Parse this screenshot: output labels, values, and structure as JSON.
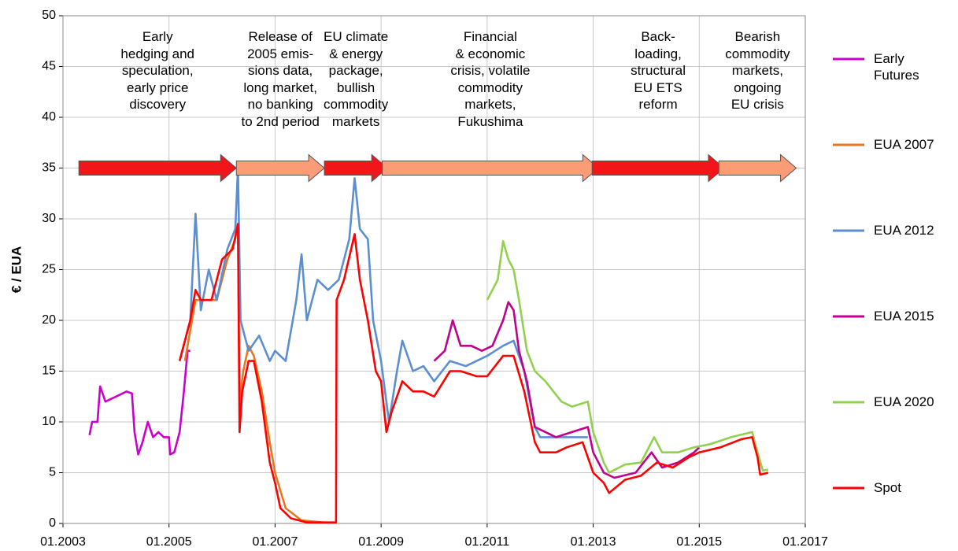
{
  "chart_data": {
    "type": "line",
    "y_label": "€ / EUA",
    "xlim": [
      2003,
      2017
    ],
    "xticks": [
      {
        "value": 2003,
        "label": "01.2003"
      },
      {
        "value": 2005,
        "label": "01.2005"
      },
      {
        "value": 2007,
        "label": "01.2007"
      },
      {
        "value": 2009,
        "label": "01.2009"
      },
      {
        "value": 2011,
        "label": "01.2011"
      },
      {
        "value": 2013,
        "label": "01.2013"
      },
      {
        "value": 2015,
        "label": "01.2015"
      },
      {
        "value": 2017,
        "label": "01.2017"
      }
    ],
    "ylim": [
      0,
      50
    ],
    "yticks": [
      0,
      5,
      10,
      15,
      20,
      25,
      30,
      35,
      40,
      45,
      50
    ],
    "grid": true,
    "legend": "right",
    "phase_level": 35,
    "phases": [
      {
        "label": "Early\nhedging and\nspeculation,\nearly price\ndiscovery",
        "start": 2003.3,
        "end": 2006.27,
        "color": "#f2161b"
      },
      {
        "label": "Release of\n2005 emis-\nsions data,\nlong market,\nno banking\nto 2nd period",
        "start": 2006.27,
        "end": 2007.93,
        "color": "#fb9c76"
      },
      {
        "label": "EU climate\n& energy\npackage,\nbullish\ncommodity\nmarkets",
        "start": 2007.93,
        "end": 2009.12,
        "color": "#f2161b"
      },
      {
        "label": "Financial\n& economic\ncrisis, volatile\ncommodity\nmarkets,\nFukushima",
        "start": 2009.02,
        "end": 2013.1,
        "color": "#fb9c76"
      },
      {
        "label": "Back-\nloading,\nstructural\nEU ETS\nreform",
        "start": 2012.98,
        "end": 2015.47,
        "color": "#f2161b"
      },
      {
        "label": "Bearish\ncommodity\nmarkets,\nongoing\nEU crisis",
        "start": 2015.37,
        "end": 2016.83,
        "color": "#fb9c76"
      }
    ],
    "series": [
      {
        "name": "Early Futures",
        "color": "#cc00cc",
        "x": [
          2003.5,
          2003.55,
          2003.65,
          2003.7,
          2003.8,
          2004.0,
          2004.2,
          2004.3,
          2004.35,
          2004.42,
          2004.5,
          2004.6,
          2004.7,
          2004.8,
          2004.9,
          2005.0,
          2005.02,
          2005.1,
          2005.2,
          2005.28,
          2005.35,
          2005.4
        ],
        "values": [
          8.7,
          10,
          10,
          13.5,
          12,
          12.5,
          13,
          12.8,
          9,
          6.8,
          8,
          10,
          8.5,
          9,
          8.5,
          8.5,
          6.8,
          7,
          9,
          13,
          17,
          17
        ]
      },
      {
        "name": "EUA 2007",
        "color": "#e87722",
        "x": [
          2005.3,
          2005.5,
          2005.7,
          2005.9,
          2006.1,
          2006.25,
          2006.3,
          2006.33,
          2006.4,
          2006.5,
          2006.6,
          2006.75,
          2006.9,
          2007.0,
          2007.2,
          2007.5,
          2007.9
        ],
        "values": [
          16,
          22,
          22,
          22,
          26,
          28,
          29.5,
          12,
          15,
          17.5,
          16.5,
          13,
          8,
          5,
          1.5,
          0.3,
          0.1
        ]
      },
      {
        "name": "EUA 2012",
        "color": "#5b8fd0",
        "x": [
          2005.2,
          2005.4,
          2005.5,
          2005.6,
          2005.75,
          2005.9,
          2006.1,
          2006.25,
          2006.3,
          2006.35,
          2006.5,
          2006.7,
          2006.9,
          2007.0,
          2007.2,
          2007.4,
          2007.5,
          2007.6,
          2007.8,
          2008.0,
          2008.2,
          2008.4,
          2008.5,
          2008.6,
          2008.75,
          2008.85,
          2009.0,
          2009.15,
          2009.3,
          2009.4,
          2009.6,
          2009.8,
          2010.0,
          2010.3,
          2010.6,
          2011.0,
          2011.3,
          2011.5,
          2011.7,
          2011.9,
          2012.0,
          2012.3,
          2012.6,
          2012.9
        ],
        "values": [
          16,
          20,
          30.5,
          21,
          25,
          22,
          27,
          29,
          35,
          20,
          17,
          18.5,
          16,
          17,
          16,
          22,
          26.5,
          20,
          24,
          23,
          24,
          28,
          34,
          29,
          28,
          20,
          16,
          10,
          15,
          18,
          15,
          15.5,
          14,
          16,
          15.5,
          16.5,
          17.5,
          18,
          15,
          9.5,
          8.5,
          8.5,
          8.5,
          8.5
        ]
      },
      {
        "name": "EUA 2015",
        "color": "#c0008f",
        "x": [
          2010.0,
          2010.2,
          2010.35,
          2010.5,
          2010.7,
          2010.9,
          2011.1,
          2011.3,
          2011.4,
          2011.5,
          2011.6,
          2011.75,
          2011.9,
          2012.1,
          2012.3,
          2012.6,
          2012.9,
          2013.0,
          2013.2,
          2013.4,
          2013.8,
          2014.1,
          2014.3,
          2014.6,
          2014.9,
          2015.0
        ],
        "values": [
          16,
          17,
          20,
          17.5,
          17.5,
          17,
          17.5,
          20,
          21.8,
          21,
          17,
          14,
          9.5,
          9,
          8.5,
          9,
          9.5,
          7,
          5,
          4.5,
          5,
          7,
          5.5,
          6,
          7,
          7.5
        ]
      },
      {
        "name": "EUA 2020",
        "color": "#92d050",
        "x": [
          2011.0,
          2011.2,
          2011.3,
          2011.4,
          2011.5,
          2011.6,
          2011.75,
          2011.9,
          2012.1,
          2012.4,
          2012.6,
          2012.9,
          2013.0,
          2013.2,
          2013.3,
          2013.6,
          2013.9,
          2014.15,
          2014.3,
          2014.6,
          2014.9,
          2015.2,
          2015.6,
          2016.0,
          2016.1,
          2016.2,
          2016.3
        ],
        "values": [
          22,
          24,
          27.8,
          26,
          25,
          22,
          17,
          15,
          14,
          12,
          11.5,
          12,
          9,
          6,
          5,
          5.8,
          6,
          8.5,
          7,
          7,
          7.5,
          7.8,
          8.5,
          9,
          7,
          5.2,
          5.3
        ]
      },
      {
        "name": "Spot",
        "color": "#ff0000",
        "x": [
          2005.2,
          2005.4,
          2005.5,
          2005.6,
          2005.8,
          2006.0,
          2006.2,
          2006.3,
          2006.33,
          2006.38,
          2006.5,
          2006.6,
          2006.75,
          2006.9,
          2007.0,
          2007.1,
          2007.3,
          2007.6,
          2008.15,
          2008.16,
          2008.3,
          2008.5,
          2008.6,
          2008.75,
          2008.9,
          2009.0,
          2009.1,
          2009.2,
          2009.4,
          2009.6,
          2009.8,
          2010.0,
          2010.3,
          2010.5,
          2010.8,
          2011.0,
          2011.3,
          2011.5,
          2011.7,
          2011.9,
          2012.0,
          2012.3,
          2012.5,
          2012.8,
          2013.0,
          2013.2,
          2013.3,
          2013.6,
          2013.9,
          2014.2,
          2014.5,
          2014.8,
          2015.0,
          2015.4,
          2015.8,
          2016.0,
          2016.1,
          2016.15,
          2016.3
        ],
        "values": [
          16,
          20,
          23,
          22,
          22,
          26,
          27,
          29.5,
          9,
          13,
          16,
          16,
          12,
          6,
          4,
          1.5,
          0.5,
          0.1,
          0.1,
          22,
          24,
          28.5,
          24,
          20,
          15,
          14,
          9,
          11,
          14,
          13,
          13,
          12.5,
          15,
          15,
          14.5,
          14.5,
          16.5,
          16.5,
          13,
          8,
          7,
          7,
          7.5,
          8,
          5,
          4,
          3,
          4.3,
          4.7,
          6,
          5.5,
          6.5,
          7,
          7.5,
          8.3,
          8.5,
          6.5,
          4.8,
          5
        ]
      }
    ]
  }
}
